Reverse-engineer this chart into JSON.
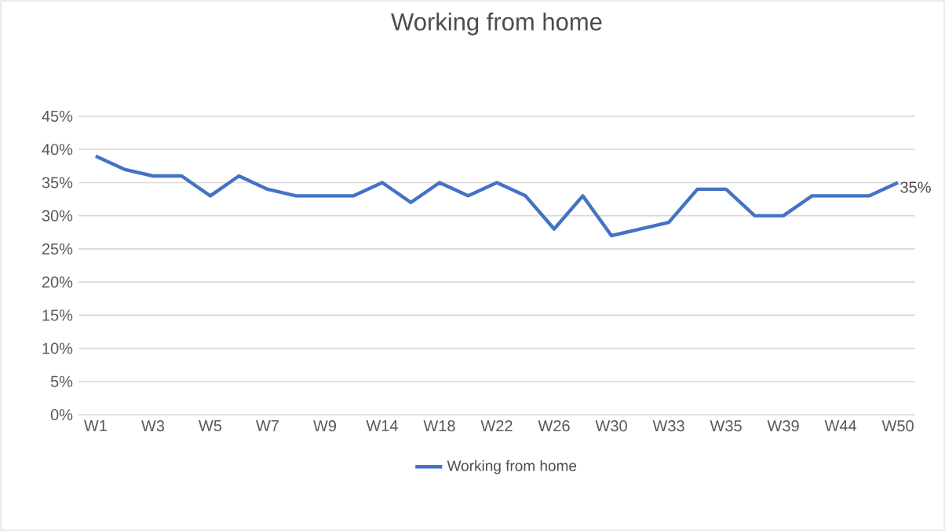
{
  "chart_data": {
    "type": "line",
    "title": "Working from home",
    "categories": [
      "W1",
      null,
      "W3",
      null,
      "W5",
      null,
      "W7",
      null,
      "W9",
      null,
      "W14",
      null,
      "W18",
      null,
      "W22",
      null,
      "W26",
      null,
      "W30",
      null,
      "W33",
      null,
      "W35",
      null,
      "W39",
      null,
      "W44",
      null,
      "W50"
    ],
    "series": [
      {
        "name": "Working from home",
        "color": "#4472c4",
        "values": [
          39,
          37,
          36,
          36,
          33,
          36,
          34,
          33,
          33,
          33,
          35,
          32,
          35,
          33,
          35,
          33,
          28,
          33,
          27,
          28,
          29,
          34,
          34,
          30,
          30,
          33,
          33,
          33,
          35
        ],
        "value_labels": [
          null,
          null,
          null,
          null,
          null,
          null,
          null,
          null,
          null,
          null,
          null,
          null,
          null,
          null,
          null,
          null,
          null,
          null,
          null,
          null,
          null,
          null,
          null,
          null,
          null,
          null,
          null,
          null,
          "35%"
        ]
      }
    ],
    "ylim": [
      0,
      45
    ],
    "yticks": [
      {
        "value": 0,
        "label": "0%"
      },
      {
        "value": 5,
        "label": "5%"
      },
      {
        "value": 10,
        "label": "10%"
      },
      {
        "value": 15,
        "label": "15%"
      },
      {
        "value": 20,
        "label": "20%"
      },
      {
        "value": 25,
        "label": "25%"
      },
      {
        "value": 30,
        "label": "30%"
      },
      {
        "value": 35,
        "label": "35%"
      },
      {
        "value": 40,
        "label": "40%"
      },
      {
        "value": 45,
        "label": "45%"
      }
    ],
    "grid": "y",
    "legend": "bottom",
    "marker": "none",
    "line_style": "solid"
  }
}
